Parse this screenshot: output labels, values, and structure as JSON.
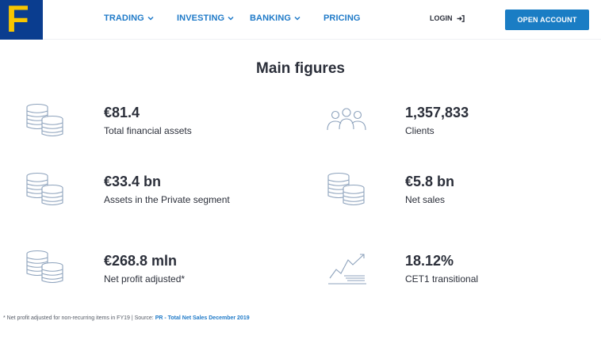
{
  "header": {
    "logo_letter": "F",
    "nav": [
      {
        "label": "TRADING",
        "has_dropdown": true
      },
      {
        "label": "INVESTING",
        "has_dropdown": true
      },
      {
        "label": "BANKING",
        "has_dropdown": true
      },
      {
        "label": "PRICING",
        "has_dropdown": false
      }
    ],
    "login_label": "LOGIN",
    "open_account_label": "OPEN ACCOUNT"
  },
  "main": {
    "title": "Main figures",
    "figures": [
      {
        "value": "€81.4",
        "label": "Total financial assets",
        "icon": "coins-stack-icon"
      },
      {
        "value": "1,357,833",
        "label": "Clients",
        "icon": "people-group-icon"
      },
      {
        "value": "€33.4 bn",
        "label": "Assets in the Private segment",
        "icon": "coins-stack-icon"
      },
      {
        "value": "€5.8 bn",
        "label": "Net sales",
        "icon": "coins-stack-icon"
      },
      {
        "value": "€268.8 mln",
        "label": "Net profit adjusted*",
        "icon": "coins-stack-icon"
      },
      {
        "value": "18.12%",
        "label": "CET1 transitional",
        "icon": "growth-chart-icon"
      }
    ]
  },
  "footnote": {
    "text": "* Net profit adjusted for non-recurring items in FY19 | Source: ",
    "link": "PR - Total Net Sales December 2019"
  },
  "colors": {
    "brand_blue": "#0a3d8f",
    "logo_yellow": "#f7c600",
    "accent": "#1a7dc4",
    "icon_stroke": "#8da2bc"
  }
}
